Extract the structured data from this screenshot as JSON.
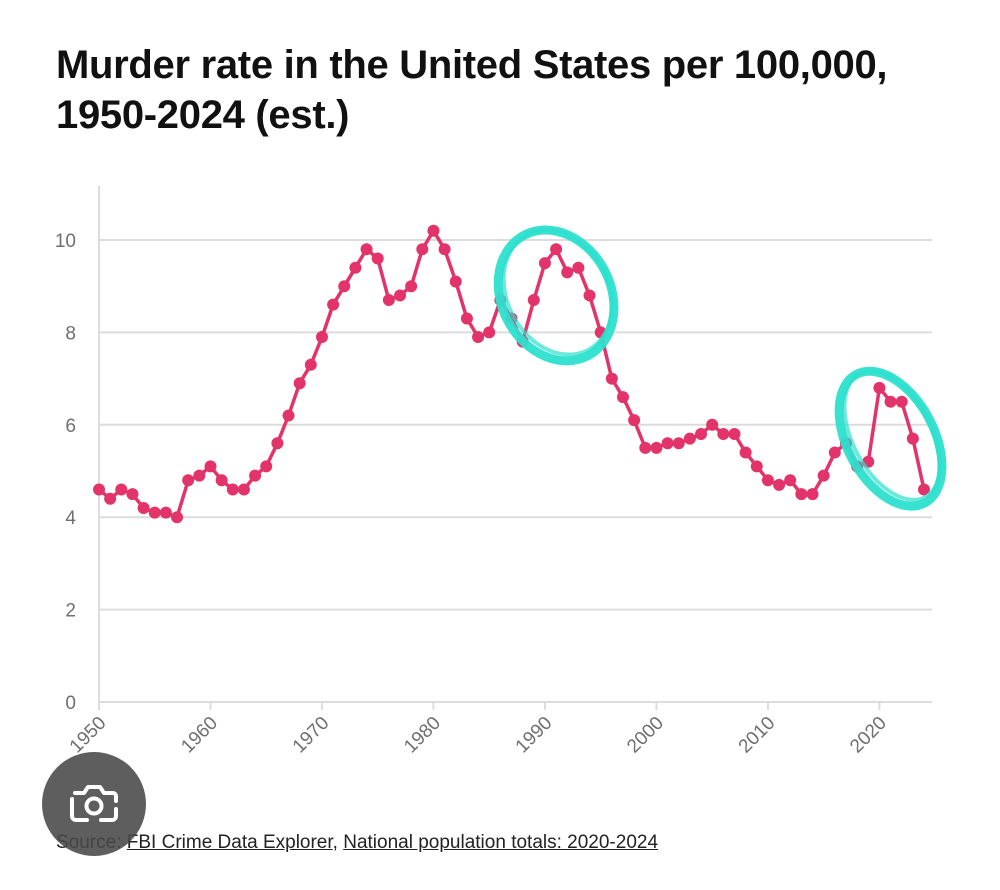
{
  "title_lines": [
    "Murder rate in the United States per 100,000,",
    "1950-2024 (est.)"
  ],
  "source": {
    "prefix": "Source: ",
    "link1": "FBI Crime Data Explorer",
    "separator": ", ",
    "link2": "National population totals: 2020-2024"
  },
  "colors": {
    "line": "#e3336b",
    "highlight": "#2de0cf",
    "grid": "#dcdcdc",
    "axis_text": "#6f6f6f"
  },
  "overlay_icon": "google-lens-camera-icon",
  "chart_data": {
    "type": "line",
    "title": "Murder rate in the United States per 100,000, 1950-2024 (est.)",
    "xlabel": "",
    "ylabel": "",
    "xlim": [
      1950,
      2024
    ],
    "ylim": [
      0,
      11
    ],
    "yticks": [
      0,
      2,
      4,
      6,
      8,
      10
    ],
    "xticks": [
      1950,
      1960,
      1970,
      1980,
      1990,
      2000,
      2010,
      2020
    ],
    "grid": true,
    "series": [
      {
        "name": "Murder rate per 100,000",
        "x": [
          1950,
          1951,
          1952,
          1953,
          1954,
          1955,
          1956,
          1957,
          1958,
          1959,
          1960,
          1961,
          1962,
          1963,
          1964,
          1965,
          1966,
          1967,
          1968,
          1969,
          1970,
          1971,
          1972,
          1973,
          1974,
          1975,
          1976,
          1977,
          1978,
          1979,
          1980,
          1981,
          1982,
          1983,
          1984,
          1985,
          1986,
          1987,
          1988,
          1989,
          1990,
          1991,
          1992,
          1993,
          1994,
          1995,
          1996,
          1997,
          1998,
          1999,
          2000,
          2001,
          2002,
          2003,
          2004,
          2005,
          2006,
          2007,
          2008,
          2009,
          2010,
          2011,
          2012,
          2013,
          2014,
          2015,
          2016,
          2017,
          2018,
          2019,
          2020,
          2021,
          2022,
          2023,
          2024
        ],
        "values": [
          4.6,
          4.4,
          4.6,
          4.5,
          4.2,
          4.1,
          4.1,
          4.0,
          4.8,
          4.9,
          5.1,
          4.8,
          4.6,
          4.6,
          4.9,
          5.1,
          5.6,
          6.2,
          6.9,
          7.3,
          7.9,
          8.6,
          9.0,
          9.4,
          9.8,
          9.6,
          8.7,
          8.8,
          9.0,
          9.8,
          10.2,
          9.8,
          9.1,
          8.3,
          7.9,
          8.0,
          8.7,
          8.3,
          7.8,
          8.7,
          9.5,
          9.8,
          9.3,
          9.4,
          8.8,
          8.0,
          7.0,
          6.6,
          6.1,
          5.5,
          5.5,
          5.6,
          5.6,
          5.7,
          5.8,
          6.0,
          5.8,
          5.8,
          5.4,
          5.1,
          4.8,
          4.7,
          4.8,
          4.5,
          4.5,
          4.9,
          5.4,
          5.6,
          5.1,
          5.2,
          6.8,
          6.5,
          6.5,
          5.7,
          4.6
        ]
      }
    ],
    "annotations": [
      {
        "type": "hand-drawn circle",
        "around_years": [
          1987,
          1995
        ]
      },
      {
        "type": "hand-drawn circle",
        "around_years": [
          2018,
          2024
        ]
      }
    ]
  }
}
